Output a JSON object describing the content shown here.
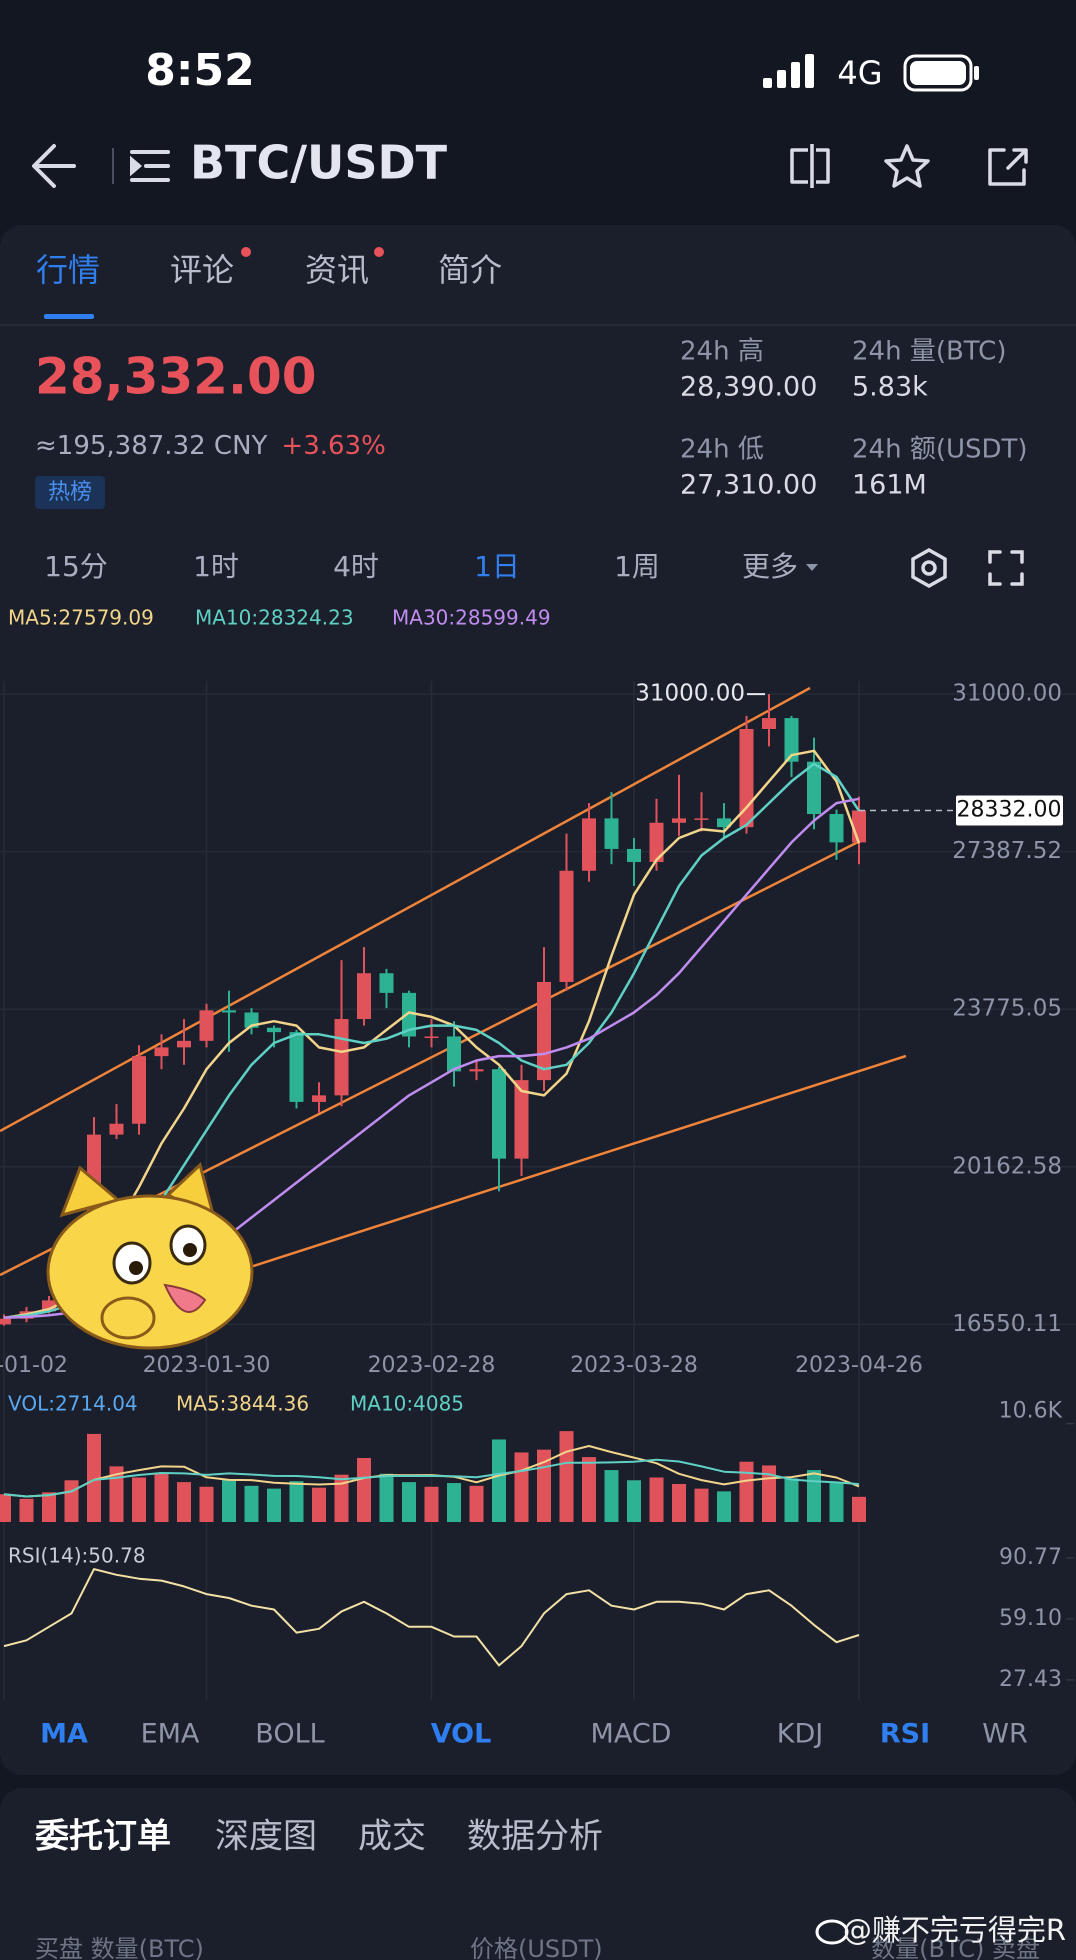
{
  "status_bar": {
    "time": "8:52",
    "network": "4G"
  },
  "header": {
    "pair": "BTC/USDT"
  },
  "tabs": [
    "行情",
    "评论",
    "资讯",
    "简介"
  ],
  "ticker": {
    "price": "28,332.00",
    "cny": "≈195,387.32 CNY",
    "change": "+3.63%",
    "tag": "热榜",
    "stats": [
      {
        "label": "24h 高",
        "value": "28,390.00"
      },
      {
        "label": "24h 量(BTC)",
        "value": "5.83k"
      },
      {
        "label": "24h 低",
        "value": "27,310.00"
      },
      {
        "label": "24h 额(USDT)",
        "value": "161M"
      }
    ]
  },
  "intervals": [
    "15分",
    "1时",
    "4时",
    "1日",
    "1周",
    "更多"
  ],
  "chart_data": [
    {
      "type": "candlestick",
      "categories": [
        "2023-01-02",
        null,
        null,
        null,
        null,
        null,
        null,
        null,
        null,
        "2023-01-30",
        null,
        null,
        null,
        null,
        null,
        null,
        null,
        null,
        null,
        "2023-02-28",
        null,
        null,
        null,
        null,
        null,
        null,
        null,
        null,
        "2023-03-28",
        null,
        null,
        null,
        null,
        null,
        null,
        null,
        null,
        null,
        "2023-04-26"
      ],
      "open": [
        16550,
        16680,
        16850,
        17100,
        17900,
        20900,
        21150,
        22700,
        22900,
        23050,
        23750,
        23700,
        23350,
        23250,
        21650,
        21800,
        23550,
        24600,
        24150,
        23150,
        23150,
        22350,
        22400,
        20350,
        22150,
        24400,
        26950,
        28150,
        27450,
        27150,
        28050,
        28150,
        28150,
        27950,
        30200,
        30450,
        29450,
        28250,
        27600
      ],
      "high": [
        16780,
        16950,
        17200,
        18200,
        21300,
        21600,
        22950,
        23200,
        23550,
        23900,
        24200,
        23800,
        23400,
        23300,
        22100,
        24900,
        25200,
        24700,
        24200,
        23550,
        23500,
        22600,
        22450,
        22500,
        25200,
        27800,
        28500,
        28750,
        27700,
        28600,
        29150,
        28750,
        28500,
        30500,
        31000,
        30500,
        30000,
        28350,
        28650
      ],
      "low": [
        16520,
        16600,
        16800,
        17050,
        17850,
        20800,
        20900,
        22400,
        22500,
        22900,
        22800,
        23200,
        22900,
        21500,
        21400,
        21550,
        23400,
        23800,
        22900,
        22900,
        22000,
        22150,
        19600,
        19950,
        21900,
        24200,
        26700,
        27100,
        26600,
        26950,
        27750,
        27850,
        27700,
        27800,
        29800,
        29100,
        27900,
        27200,
        27100
      ],
      "close": [
        16680,
        16850,
        17100,
        17900,
        20900,
        21150,
        22700,
        22900,
        23050,
        23750,
        23700,
        23350,
        23250,
        21650,
        21800,
        23550,
        24600,
        24150,
        23150,
        23150,
        22350,
        22400,
        20350,
        22150,
        24400,
        26950,
        28150,
        27450,
        27150,
        28050,
        28150,
        28150,
        27950,
        30200,
        30450,
        29450,
        28250,
        27600,
        28332
      ],
      "up_color": "#e0535b",
      "down_color": "#2db394",
      "series": [
        {
          "name": "MA5:27579.09",
          "color": "#f2d48a",
          "values": [
            16700,
            16780,
            16900,
            17150,
            17900,
            18800,
            19700,
            20700,
            21500,
            22400,
            23000,
            23400,
            23500,
            23400,
            22900,
            22800,
            22900,
            23300,
            23700,
            23600,
            23400,
            22900,
            22500,
            21900,
            21800,
            22300,
            23500,
            25000,
            26400,
            27200,
            27700,
            27900,
            27850,
            28400,
            29000,
            29600,
            29700,
            29000,
            27579.09
          ]
        },
        {
          "name": "MA10:28324.23",
          "color": "#5fd0c4",
          "values": [
            16700,
            16750,
            16850,
            17000,
            17400,
            17900,
            18600,
            19400,
            20200,
            21000,
            21800,
            22500,
            23000,
            23200,
            23200,
            23100,
            23000,
            23100,
            23300,
            23400,
            23400,
            23300,
            23000,
            22600,
            22400,
            22500,
            23000,
            23700,
            24600,
            25600,
            26600,
            27300,
            27700,
            28000,
            28500,
            29000,
            29400,
            29100,
            28324.23
          ]
        },
        {
          "name": "MA30:28599.49",
          "color": "#c08cf0",
          "values": [
            16700,
            16720,
            16760,
            16820,
            16950,
            17100,
            17300,
            17550,
            17850,
            18200,
            18600,
            19000,
            19400,
            19800,
            20200,
            20600,
            21000,
            21400,
            21800,
            22100,
            22400,
            22600,
            22700,
            22700,
            22750,
            22900,
            23100,
            23400,
            23700,
            24100,
            24600,
            25200,
            25800,
            26400,
            27000,
            27600,
            28100,
            28500,
            28599.49
          ]
        }
      ],
      "ylim": [
        16100,
        31300
      ],
      "yticks": [
        {
          "value": 16550.11,
          "label": "16550.11"
        },
        {
          "value": 20162.58,
          "label": "20162.58"
        },
        {
          "value": 23775.05,
          "label": "23775.05"
        },
        {
          "value": 27387.52,
          "label": "27387.52"
        },
        {
          "value": 31000,
          "label": "31000.00"
        }
      ],
      "high_marker": "31000.00",
      "last_price_label": "28332.00",
      "grid": true
    },
    {
      "type": "bar",
      "label": "VOL:2714.04",
      "values": [
        3000,
        2500,
        3200,
        4500,
        9500,
        6000,
        4800,
        5200,
        4300,
        3800,
        4600,
        3900,
        3600,
        4400,
        3700,
        5100,
        6900,
        5200,
        4300,
        3800,
        4200,
        3900,
        8900,
        7500,
        7800,
        9800,
        7000,
        5600,
        4500,
        4800,
        4100,
        3600,
        3300,
        6500,
        6100,
        4700,
        5600,
        4200,
        2714.04
      ],
      "series": [
        {
          "name": "MA5:3844.36",
          "color": "#f2d48a",
          "values": [
            3000,
            2750,
            2900,
            3300,
            4540,
            5140,
            5600,
            6000,
            5960,
            4820,
            4540,
            4520,
            4240,
            4120,
            4040,
            4140,
            4740,
            5060,
            5040,
            5060,
            4880,
            4280,
            5020,
            5540,
            6460,
            7580,
            8200,
            7540,
            6940,
            6340,
            5200,
            4520,
            4060,
            4460,
            4720,
            4840,
            5240,
            4800,
            3844.36
          ]
        },
        {
          "name": "MA10:4085",
          "color": "#5fd0c4",
          "values": [
            3000,
            2750,
            2900,
            3300,
            4540,
            4780,
            5070,
            5280,
            5240,
            5080,
            5240,
            5120,
            4970,
            4960,
            4830,
            4620,
            4770,
            4960,
            4960,
            4960,
            4930,
            4820,
            5190,
            5500,
            5910,
            6380,
            6390,
            6430,
            6500,
            6720,
            6520,
            6000,
            5420,
            5320,
            5140,
            4580,
            4400,
            4270,
            4085
          ]
        }
      ],
      "ylim": [
        0,
        11000
      ],
      "yticks": [
        {
          "value": 10600,
          "label": "10.6K"
        }
      ]
    },
    {
      "type": "line",
      "label": "RSI(14):50.78",
      "color": "#f3e1a6",
      "values": [
        45,
        48,
        55,
        62,
        85,
        82,
        80,
        79,
        76,
        72,
        70,
        66,
        64,
        52,
        54,
        63,
        68,
        62,
        55,
        55,
        50,
        50,
        35,
        45,
        62,
        72,
        74,
        66,
        64,
        68,
        68,
        67,
        64,
        72,
        74,
        66,
        56,
        47,
        50.78
      ],
      "ylim": [
        22.2,
        97.5
      ],
      "yticks": [
        27.43,
        {
          "value": 59.1,
          "label": "59.10"
        },
        90.77
      ]
    }
  ],
  "indicator_tabs": [
    "MA",
    "EMA",
    "BOLL",
    "VOL",
    "MACD",
    "KDJ",
    "RSI",
    "WR"
  ],
  "order_tabs": [
    "委托订单",
    "深度图",
    "成交",
    "数据分析"
  ],
  "order_columns": [
    "买盘 数量(BTC)",
    "价格(USDT)",
    "数量(BTC) 卖盘"
  ],
  "watermark": "@赚不完亏得完R"
}
